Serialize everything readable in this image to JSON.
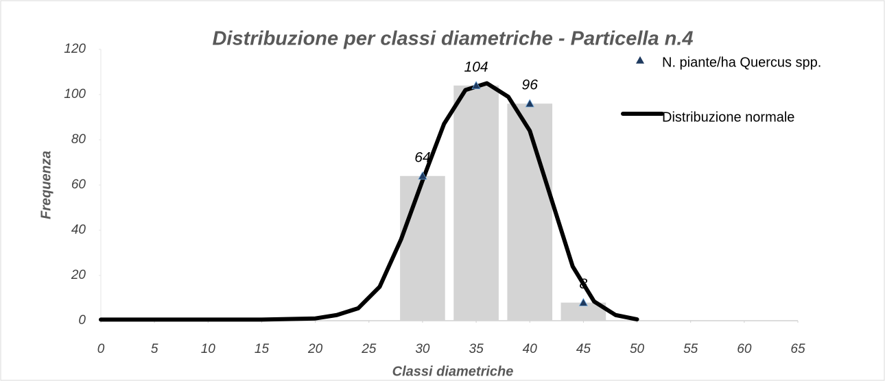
{
  "chart_data": {
    "type": "bar",
    "title": "Distribuzione per classi diametriche - Particella n.4",
    "xlabel": "Classi diametriche",
    "ylabel": "Frequenza",
    "xlim": [
      0,
      65
    ],
    "xticks": [
      0,
      5,
      10,
      15,
      20,
      25,
      30,
      35,
      40,
      45,
      50,
      55,
      60,
      65
    ],
    "ylim": [
      0,
      120
    ],
    "yticks": [
      0,
      20,
      40,
      60,
      80,
      100,
      120
    ],
    "legend": "top-right",
    "series": [
      {
        "name": "N. piante/ha Quercus spp.",
        "type": "bar",
        "marker": "triangle",
        "color": "#d4d4d4",
        "marker_color": "#1f3a5f",
        "x": [
          30,
          35,
          40,
          45
        ],
        "values": [
          64,
          104,
          96,
          8
        ]
      },
      {
        "name": "Distribuzione normale",
        "type": "line",
        "color": "#000000",
        "x": [
          0,
          15,
          20,
          22,
          24,
          26,
          28,
          30,
          32,
          34,
          36,
          38,
          40,
          42,
          44,
          46,
          48,
          50
        ],
        "values": [
          0.5,
          0.5,
          1,
          2.5,
          5.5,
          15,
          36,
          62,
          87,
          102,
          105,
          99,
          84,
          54,
          24,
          8.5,
          2.5,
          0.6
        ]
      }
    ]
  }
}
